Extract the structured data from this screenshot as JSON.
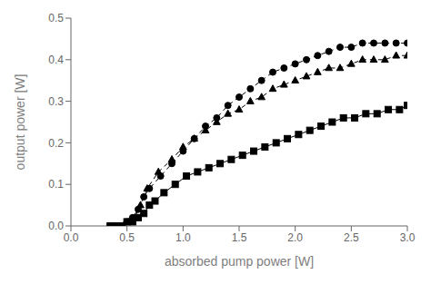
{
  "chart_data": {
    "type": "line",
    "xlabel": "absorbed pump power [W]",
    "ylabel": "output power [W]",
    "xlim": [
      0.0,
      3.0
    ],
    "ylim": [
      0.0,
      0.5
    ],
    "xticks": [
      {
        "value": 0.0,
        "label": "0.0"
      },
      0.5,
      {
        "value": 1.0,
        "label": "1.0"
      },
      1.5,
      {
        "value": 2.0,
        "label": "2.0"
      },
      2.5,
      {
        "value": 3.0,
        "label": "3.0"
      }
    ],
    "yticks": [
      {
        "value": 0.0,
        "label": "0.0"
      },
      0.1,
      0.2,
      0.3,
      0.4,
      0.5
    ],
    "grid": false,
    "series": [
      {
        "color": "#000000",
        "marker": "circle",
        "line_style": "dashed",
        "x": [
          0.45,
          0.5,
          0.55,
          0.6,
          0.65,
          0.7,
          0.8,
          0.9,
          1.0,
          1.1,
          1.2,
          1.3,
          1.4,
          1.5,
          1.6,
          1.7,
          1.8,
          1.9,
          2.0,
          2.1,
          2.2,
          2.3,
          2.4,
          2.5,
          2.6,
          2.7,
          2.8,
          2.9,
          3.0
        ],
        "values": [
          0.0,
          0.01,
          0.02,
          0.04,
          0.07,
          0.09,
          0.12,
          0.15,
          0.18,
          0.21,
          0.24,
          0.26,
          0.29,
          0.31,
          0.33,
          0.35,
          0.37,
          0.38,
          0.39,
          0.4,
          0.41,
          0.42,
          0.43,
          0.43,
          0.44,
          0.44,
          0.44,
          0.44,
          0.44
        ]
      },
      {
        "color": "#000000",
        "marker": "triangle",
        "line_style": "dashed",
        "x": [
          0.47,
          0.52,
          0.57,
          0.62,
          0.68,
          0.78,
          0.9,
          1.0,
          1.1,
          1.2,
          1.3,
          1.4,
          1.5,
          1.6,
          1.7,
          1.8,
          1.9,
          2.0,
          2.1,
          2.2,
          2.3,
          2.4,
          2.5,
          2.6,
          2.7,
          2.8,
          2.9,
          3.0
        ],
        "values": [
          0.0,
          0.01,
          0.02,
          0.05,
          0.09,
          0.13,
          0.16,
          0.19,
          0.21,
          0.23,
          0.25,
          0.27,
          0.28,
          0.3,
          0.31,
          0.33,
          0.34,
          0.35,
          0.36,
          0.37,
          0.38,
          0.38,
          0.39,
          0.4,
          0.4,
          0.4,
          0.41,
          0.41
        ]
      },
      {
        "color": "#000000",
        "marker": "square",
        "line_style": "solid",
        "x": [
          0.35,
          0.4,
          0.45,
          0.5,
          0.55,
          0.6,
          0.65,
          0.7,
          0.75,
          0.83,
          0.93,
          1.03,
          1.13,
          1.23,
          1.33,
          1.43,
          1.53,
          1.63,
          1.73,
          1.83,
          1.93,
          2.03,
          2.13,
          2.23,
          2.33,
          2.43,
          2.53,
          2.63,
          2.73,
          2.83,
          2.93,
          3.0
        ],
        "values": [
          0.0,
          0.0,
          0.0,
          0.01,
          0.01,
          0.02,
          0.03,
          0.05,
          0.06,
          0.08,
          0.1,
          0.12,
          0.13,
          0.14,
          0.15,
          0.16,
          0.17,
          0.18,
          0.19,
          0.2,
          0.21,
          0.22,
          0.23,
          0.24,
          0.25,
          0.26,
          0.26,
          0.27,
          0.27,
          0.28,
          0.28,
          0.29
        ]
      }
    ]
  }
}
